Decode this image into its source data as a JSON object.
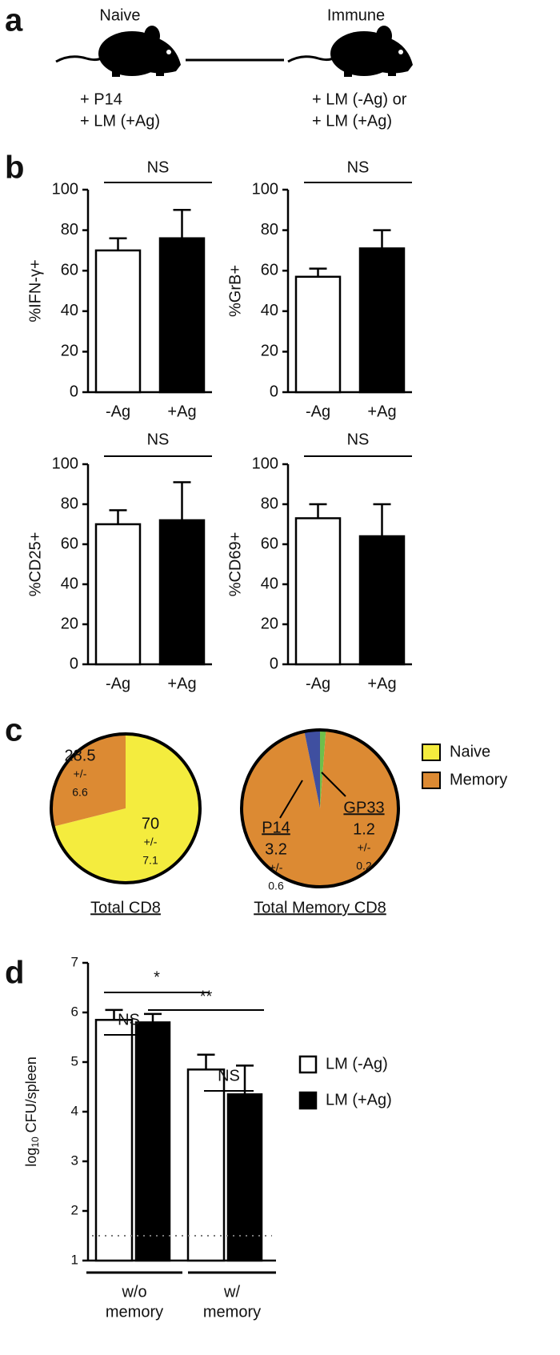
{
  "panel_labels": [
    "a",
    "b",
    "c",
    "d"
  ],
  "diagram": {
    "left": {
      "title": "Naive",
      "lines": [
        "+ P14",
        "+ LM (+Ag)"
      ]
    },
    "right": {
      "title": "Immune",
      "lines": [
        "+ LM (-Ag) or",
        "+ LM (+Ag)"
      ]
    }
  },
  "chart_data": [
    {
      "type": "bar",
      "ylabel": "%IFN-γ+",
      "categories": [
        "-Ag",
        "+Ag"
      ],
      "values": [
        70,
        76
      ],
      "errors": [
        6,
        14
      ],
      "colors": [
        "#ffffff",
        "#000000"
      ],
      "ylim": [
        0,
        100
      ],
      "yticks": [
        0,
        20,
        40,
        60,
        80,
        100
      ],
      "annotations": [
        "NS"
      ]
    },
    {
      "type": "bar",
      "ylabel": "%GrB+",
      "categories": [
        "-Ag",
        "+Ag"
      ],
      "values": [
        57,
        71
      ],
      "errors": [
        4,
        9
      ],
      "colors": [
        "#ffffff",
        "#000000"
      ],
      "ylim": [
        0,
        100
      ],
      "yticks": [
        0,
        20,
        40,
        60,
        80,
        100
      ],
      "annotations": [
        "NS"
      ]
    },
    {
      "type": "bar",
      "ylabel": "%CD25+",
      "categories": [
        "-Ag",
        "+Ag"
      ],
      "values": [
        70,
        72
      ],
      "errors": [
        7,
        19
      ],
      "colors": [
        "#ffffff",
        "#000000"
      ],
      "ylim": [
        0,
        100
      ],
      "yticks": [
        0,
        20,
        40,
        60,
        80,
        100
      ],
      "annotations": [
        "NS"
      ]
    },
    {
      "type": "bar",
      "ylabel": "%CD69+",
      "categories": [
        "-Ag",
        "+Ag"
      ],
      "values": [
        73,
        64
      ],
      "errors": [
        7,
        16
      ],
      "colors": [
        "#ffffff",
        "#000000"
      ],
      "ylim": [
        0,
        100
      ],
      "yticks": [
        0,
        20,
        40,
        60,
        80,
        100
      ],
      "annotations": [
        "NS"
      ]
    },
    {
      "type": "pie",
      "title": "Total CD8",
      "categories": [
        "Naive",
        "Memory"
      ],
      "values": [
        70,
        28.5
      ],
      "errors": [
        7.1,
        6.6
      ],
      "error_sign": "+/-",
      "colors": [
        "#f4ec3e",
        "#dc8a33"
      ]
    },
    {
      "type": "pie",
      "title": "Total Memory CD8",
      "categories": [
        "GP33",
        null,
        "P14"
      ],
      "values": [
        1.2,
        95.6,
        3.2
      ],
      "errors": [
        0.2,
        null,
        0.6
      ],
      "error_sign": "+/-",
      "colors": [
        "#6fbf4a",
        "#dc8a33",
        "#3f4fa0"
      ]
    },
    {
      "type": "bar",
      "ylabel": [
        "log",
        "10",
        "CFU/spleen"
      ],
      "categories": [
        [
          "w/o",
          "memory"
        ],
        [
          "w/",
          "memory"
        ]
      ],
      "series": [
        {
          "name": "LM (-Ag)",
          "color": "#ffffff",
          "values": [
            5.85,
            4.85
          ],
          "errors": [
            0.2,
            0.3
          ]
        },
        {
          "name": "LM (+Ag)",
          "color": "#000000",
          "values": [
            5.8,
            4.35
          ],
          "errors": [
            0.17,
            0.58
          ]
        }
      ],
      "ylim": [
        1,
        7
      ],
      "yticks": [
        1,
        2,
        3,
        4,
        5,
        6,
        7
      ],
      "detection_limit": 1.5,
      "annotations": [
        "*",
        "**",
        "NS",
        "NS"
      ]
    }
  ]
}
